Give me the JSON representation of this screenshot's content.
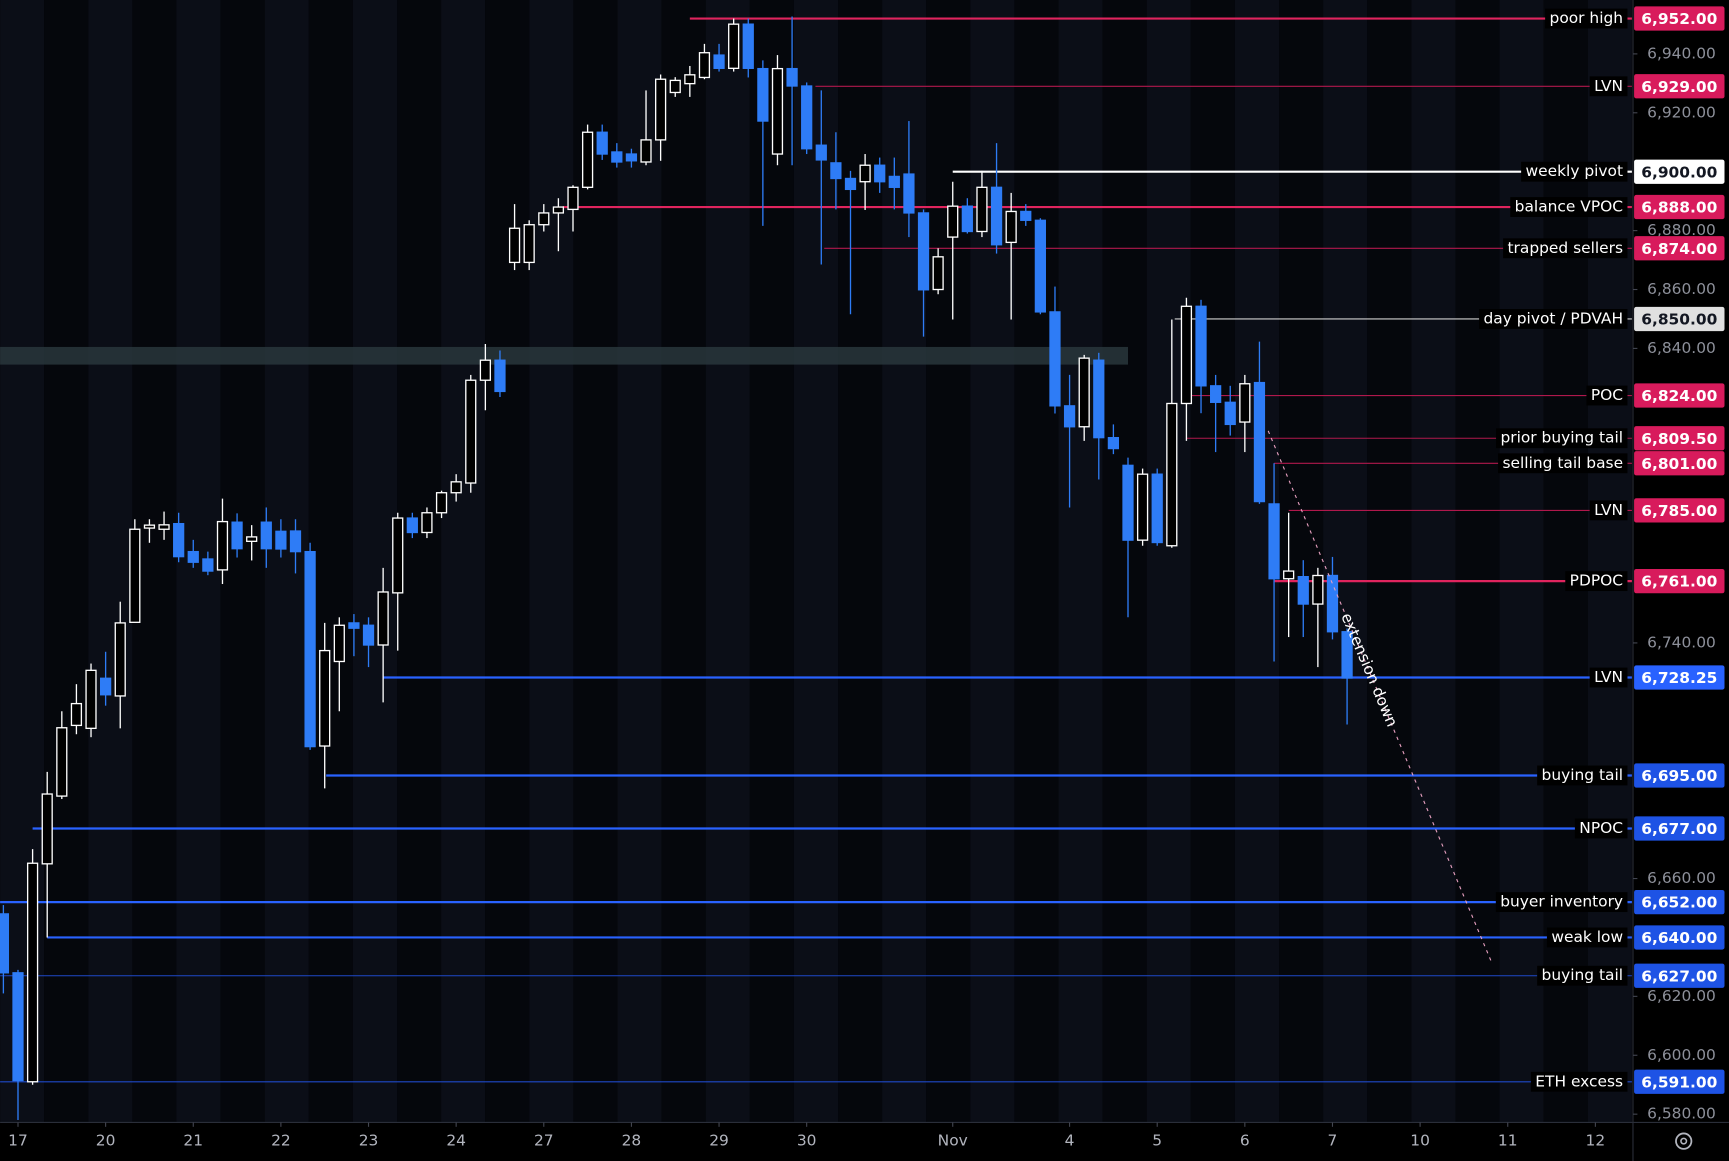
{
  "chart_data": {
    "type": "candlestick",
    "up_color": "#ffffff",
    "down_color": "#2e7cf6",
    "open": [
      6648,
      6628,
      6591,
      6665,
      6688,
      6712,
      6711,
      6728,
      6722,
      6747,
      6779,
      6778.6,
      6780.5,
      6771,
      6768.5,
      6764.8,
      6781,
      6774.5,
      6781,
      6777.9,
      6778,
      6771,
      6705,
      6733.7,
      6746.8,
      6746,
      6739.3,
      6757,
      6782.4,
      6777.5,
      6784.2,
      6791,
      6794.3,
      6829.2,
      6836,
      6869.2,
      6869.2,
      6882,
      6886,
      6887.2,
      6894.7,
      6913.4,
      6906.7,
      6906,
      6903.3,
      6910.8,
      6926.9,
      6929.9,
      6932,
      6939.6,
      6935.1,
      6950.1,
      6935,
      6906,
      6935,
      6929.1,
      6909,
      6903,
      6897.7,
      6896.6,
      6902.2,
      6898.4,
      6899.2,
      6886,
      6860,
      6877.8,
      6888.3,
      6879.7,
      6894.7,
      6876,
      6886.5,
      6883.5,
      6852.4,
      6820.5,
      6813.4,
      6836,
      6809.7,
      6800.3,
      6774.9,
      6797.3,
      6773,
      6821.3,
      6854.3,
      6827.3,
      6821.7,
      6815,
      6828.4,
      6787.2,
      6761.8,
      6762.5,
      6753.2,
      6762.9,
      6743.8
    ],
    "high": [
      6651,
      6629,
      6670,
      6696.2,
      6716.8,
      6726,
      6733,
      6737,
      6754,
      6782,
      6782,
      6784.6,
      6784.2,
      6775,
      6771,
      6789,
      6784,
      6780,
      6786,
      6782,
      6782,
      6774,
      6746.8,
      6748.7,
      6749.8,
      6748.7,
      6765.5,
      6784.2,
      6784.2,
      6786,
      6791.7,
      6797.3,
      6831,
      6841.5,
      6839.3,
      6889,
      6883.5,
      6889,
      6891,
      6895.4,
      6916,
      6916,
      6909.7,
      6907.8,
      6927.6,
      6933,
      6932.1,
      6935.9,
      6943.4,
      6943.4,
      6952,
      6952,
      6937.8,
      6939.6,
      6952.7,
      6930.3,
      6927.6,
      6913.4,
      6900.3,
      6906,
      6904.8,
      6904.8,
      6917.2,
      6887.2,
      6874,
      6896.6,
      6891,
      6900.3,
      6909.7,
      6892.8,
      6889,
      6884.2,
      6861,
      6831,
      6837.8,
      6838.5,
      6814.2,
      6802.9,
      6799.2,
      6799.2,
      6849.8,
      6857.2,
      6856.5,
      6831,
      6827.3,
      6831,
      6842.3,
      6801,
      6784.2,
      6768.1,
      6765.5,
      6769.2,
      6744.9
    ],
    "low": [
      6621,
      6578,
      6590,
      6640,
      6687,
      6709,
      6708,
      6718.7,
      6711,
      6747,
      6774,
      6775,
      6767.4,
      6765.5,
      6763,
      6760,
      6769,
      6768,
      6765.5,
      6769,
      6763.6,
      6703.7,
      6690.6,
      6716.8,
      6735.5,
      6731.8,
      6719.8,
      6737.4,
      6775.6,
      6775.6,
      6782.4,
      6788,
      6791,
      6819,
      6823.5,
      6866.6,
      6866.6,
      6879.7,
      6873,
      6879.7,
      6894,
      6904,
      6901.4,
      6901.4,
      6902.2,
      6903.7,
      6925.4,
      6925.4,
      6931.4,
      6934,
      6934,
      6932,
      6881.6,
      6902.2,
      6902.2,
      6906,
      6868.5,
      6887.2,
      6851.6,
      6887,
      6892.8,
      6887.2,
      6877.8,
      6844,
      6858.4,
      6849.8,
      6879,
      6877.8,
      6872.2,
      6849.8,
      6881.6,
      6851.6,
      6817.9,
      6786,
      6808.6,
      6795.5,
      6804.1,
      6748.7,
      6773,
      6773,
      6772.3,
      6808.6,
      6818,
      6804.8,
      6810.4,
      6804.8,
      6787.2,
      6733.7,
      6742,
      6742,
      6731.8,
      6741.2,
      6712.3
    ],
    "close": [
      6628,
      6591.4,
      6665.2,
      6688.7,
      6711.2,
      6719.4,
      6730.7,
      6722.4,
      6746.8,
      6778.6,
      6780,
      6780.1,
      6769.3,
      6767.4,
      6764.4,
      6781.2,
      6772,
      6776,
      6772,
      6771.9,
      6771,
      6704.8,
      6737.4,
      6746,
      6745,
      6739.3,
      6757.3,
      6782.4,
      6777.5,
      6784.2,
      6791,
      6794.7,
      6829.2,
      6836,
      6825.4,
      6880.8,
      6882,
      6886,
      6888,
      6894.7,
      6913.4,
      6906,
      6903.3,
      6903.7,
      6910.8,
      6931.4,
      6931,
      6932.9,
      6940.4,
      6935.1,
      6950.1,
      6935.1,
      6917.2,
      6935,
      6929.1,
      6907.8,
      6904,
      6897.7,
      6894,
      6902.2,
      6896.6,
      6894.7,
      6886,
      6859.9,
      6871.1,
      6888.3,
      6879.7,
      6894.7,
      6875.2,
      6886.5,
      6883.5,
      6852.4,
      6820.5,
      6813.4,
      6836.7,
      6809.7,
      6806,
      6774.9,
      6797.3,
      6774.1,
      6821.3,
      6854.3,
      6827.3,
      6821.7,
      6814.2,
      6828,
      6788,
      6761.8,
      6764.4,
      6753.2,
      6762.9,
      6743.8,
      6728.1
    ],
    "xlim": [
      -0.226,
      111.5
    ],
    "xticks": [
      {
        "value": 1,
        "label": "17"
      },
      {
        "value": 7,
        "label": "20"
      },
      {
        "value": 13,
        "label": "21"
      },
      {
        "value": 19,
        "label": "22"
      },
      {
        "value": 25,
        "label": "23"
      },
      {
        "value": 31,
        "label": "24"
      },
      {
        "value": 37,
        "label": "27"
      },
      {
        "value": 43,
        "label": "28"
      },
      {
        "value": 49,
        "label": "29"
      },
      {
        "value": 55,
        "label": "30"
      },
      {
        "value": 65,
        "label": "Nov"
      },
      {
        "value": 73,
        "label": "4"
      },
      {
        "value": 79,
        "label": "5"
      },
      {
        "value": 85,
        "label": "6"
      },
      {
        "value": 91,
        "label": "7"
      },
      {
        "value": 97,
        "label": "10"
      },
      {
        "value": 103,
        "label": "11"
      },
      {
        "value": 109,
        "label": "12"
      }
    ],
    "ylim": [
      6577.2,
      6958.3
    ],
    "yticks": [
      {
        "value": 6580,
        "label": "6,580.00"
      },
      {
        "value": 6600,
        "label": "6,600.00"
      },
      {
        "value": 6620,
        "label": "6,620.00"
      },
      {
        "value": 6660,
        "label": "6,660.00"
      },
      {
        "value": 6740,
        "label": "6,740.00"
      },
      {
        "value": 6840,
        "label": "6,840.00"
      },
      {
        "value": 6860,
        "label": "6,860.00"
      },
      {
        "value": 6880,
        "label": "6,880.00"
      },
      {
        "value": 6920,
        "label": "6,920.00"
      },
      {
        "value": 6940,
        "label": "6,940.00"
      }
    ],
    "zone": {
      "ylo": 6834.5,
      "yhi": 6840.5,
      "x_end": 77,
      "color": "#2a3a3e"
    },
    "levels": [
      {
        "label": "poor high",
        "value": 6952,
        "value_label": "6,952.00",
        "from": 47,
        "color": "#e0245e",
        "tag_color": "#d81b5c",
        "text_color": "#ffffff",
        "width": 2
      },
      {
        "label": "LVN",
        "value": 6929,
        "value_label": "6,929.00",
        "from": 55.6,
        "color": "#b0184c",
        "tag_color": "#d81b5c",
        "text_color": "#ffffff",
        "width": 1
      },
      {
        "label": "weekly pivot",
        "value": 6900,
        "value_label": "6,900.00",
        "from": 65,
        "color": "#ffffff",
        "tag_color": "#ffffff",
        "text_color": "#131722",
        "width": 2
      },
      {
        "label": "balance VPOC",
        "value": 6888,
        "value_label": "6,888.00",
        "from": 38.3,
        "color": "#e0245e",
        "tag_color": "#d81b5c",
        "text_color": "#ffffff",
        "width": 2
      },
      {
        "label": "trapped sellers",
        "value": 6874,
        "value_label": "6,874.00",
        "from": 56.2,
        "color": "#b0184c",
        "tag_color": "#d81b5c",
        "text_color": "#ffffff",
        "width": 1
      },
      {
        "label": "day pivot / PDVAH",
        "value": 6850,
        "value_label": "6,850.00",
        "from": 80.2,
        "color": "#d0d0d0",
        "tag_color": "#e0e0e0",
        "text_color": "#131722",
        "width": 1
      },
      {
        "label": "POC",
        "value": 6824,
        "value_label": "6,824.00",
        "from": 81,
        "color": "#b0184c",
        "tag_color": "#d81b5c",
        "text_color": "#ffffff",
        "width": 1
      },
      {
        "label": "prior buying tail",
        "value": 6809.5,
        "value_label": "6,809.50",
        "from": 81,
        "color": "#b0184c",
        "tag_color": "#d81b5c",
        "text_color": "#ffffff",
        "width": 1
      },
      {
        "label": "selling tail base",
        "value": 6801,
        "value_label": "6,801.00",
        "from": 87,
        "color": "#b0184c",
        "tag_color": "#d81b5c",
        "text_color": "#ffffff",
        "width": 1
      },
      {
        "label": "LVN",
        "value": 6785,
        "value_label": "6,785.00",
        "from": 88,
        "color": "#b0184c",
        "tag_color": "#d81b5c",
        "text_color": "#ffffff",
        "width": 1
      },
      {
        "label": "PDPOC",
        "value": 6761,
        "value_label": "6,761.00",
        "from": 87,
        "color": "#e0245e",
        "tag_color": "#d81b5c",
        "text_color": "#ffffff",
        "width": 2
      },
      {
        "label": "LVN",
        "value": 6728.25,
        "value_label": "6,728.25",
        "from": 26,
        "color": "#2962ff",
        "tag_color": "#2962ff",
        "text_color": "#ffffff",
        "width": 2
      },
      {
        "label": "buying tail",
        "value": 6695,
        "value_label": "6,695.00",
        "from": 22.1,
        "color": "#2962ff",
        "tag_color": "#1e53e5",
        "text_color": "#ffffff",
        "width": 2
      },
      {
        "label": "NPOC",
        "value": 6677,
        "value_label": "6,677.00",
        "from": 2,
        "color": "#2962ff",
        "tag_color": "#1e53e5",
        "text_color": "#ffffff",
        "width": 2
      },
      {
        "label": "buyer inventory",
        "value": 6652,
        "value_label": "6,652.00",
        "from": -0.226,
        "color": "#2962ff",
        "tag_color": "#1e53e5",
        "text_color": "#ffffff",
        "width": 2
      },
      {
        "label": "weak low",
        "value": 6640,
        "value_label": "6,640.00",
        "from": 3,
        "color": "#2962ff",
        "tag_color": "#1e53e5",
        "text_color": "#ffffff",
        "width": 2
      },
      {
        "label": "buying tail",
        "value": 6627,
        "value_label": "6,627.00",
        "from": -0.226,
        "color": "#1e48c8",
        "tag_color": "#1e53e5",
        "text_color": "#ffffff",
        "width": 1
      },
      {
        "label": "ETH excess",
        "value": 6591,
        "value_label": "6,591.00",
        "from": -0.226,
        "color": "#1e48c8",
        "tag_color": "#1e53e5",
        "text_color": "#ffffff",
        "width": 1
      }
    ],
    "trendline": {
      "label": "extension down",
      "x": [
        86.6,
        101.9
      ],
      "y": [
        6812,
        6631.5
      ],
      "color": "#e8a0c0"
    }
  }
}
